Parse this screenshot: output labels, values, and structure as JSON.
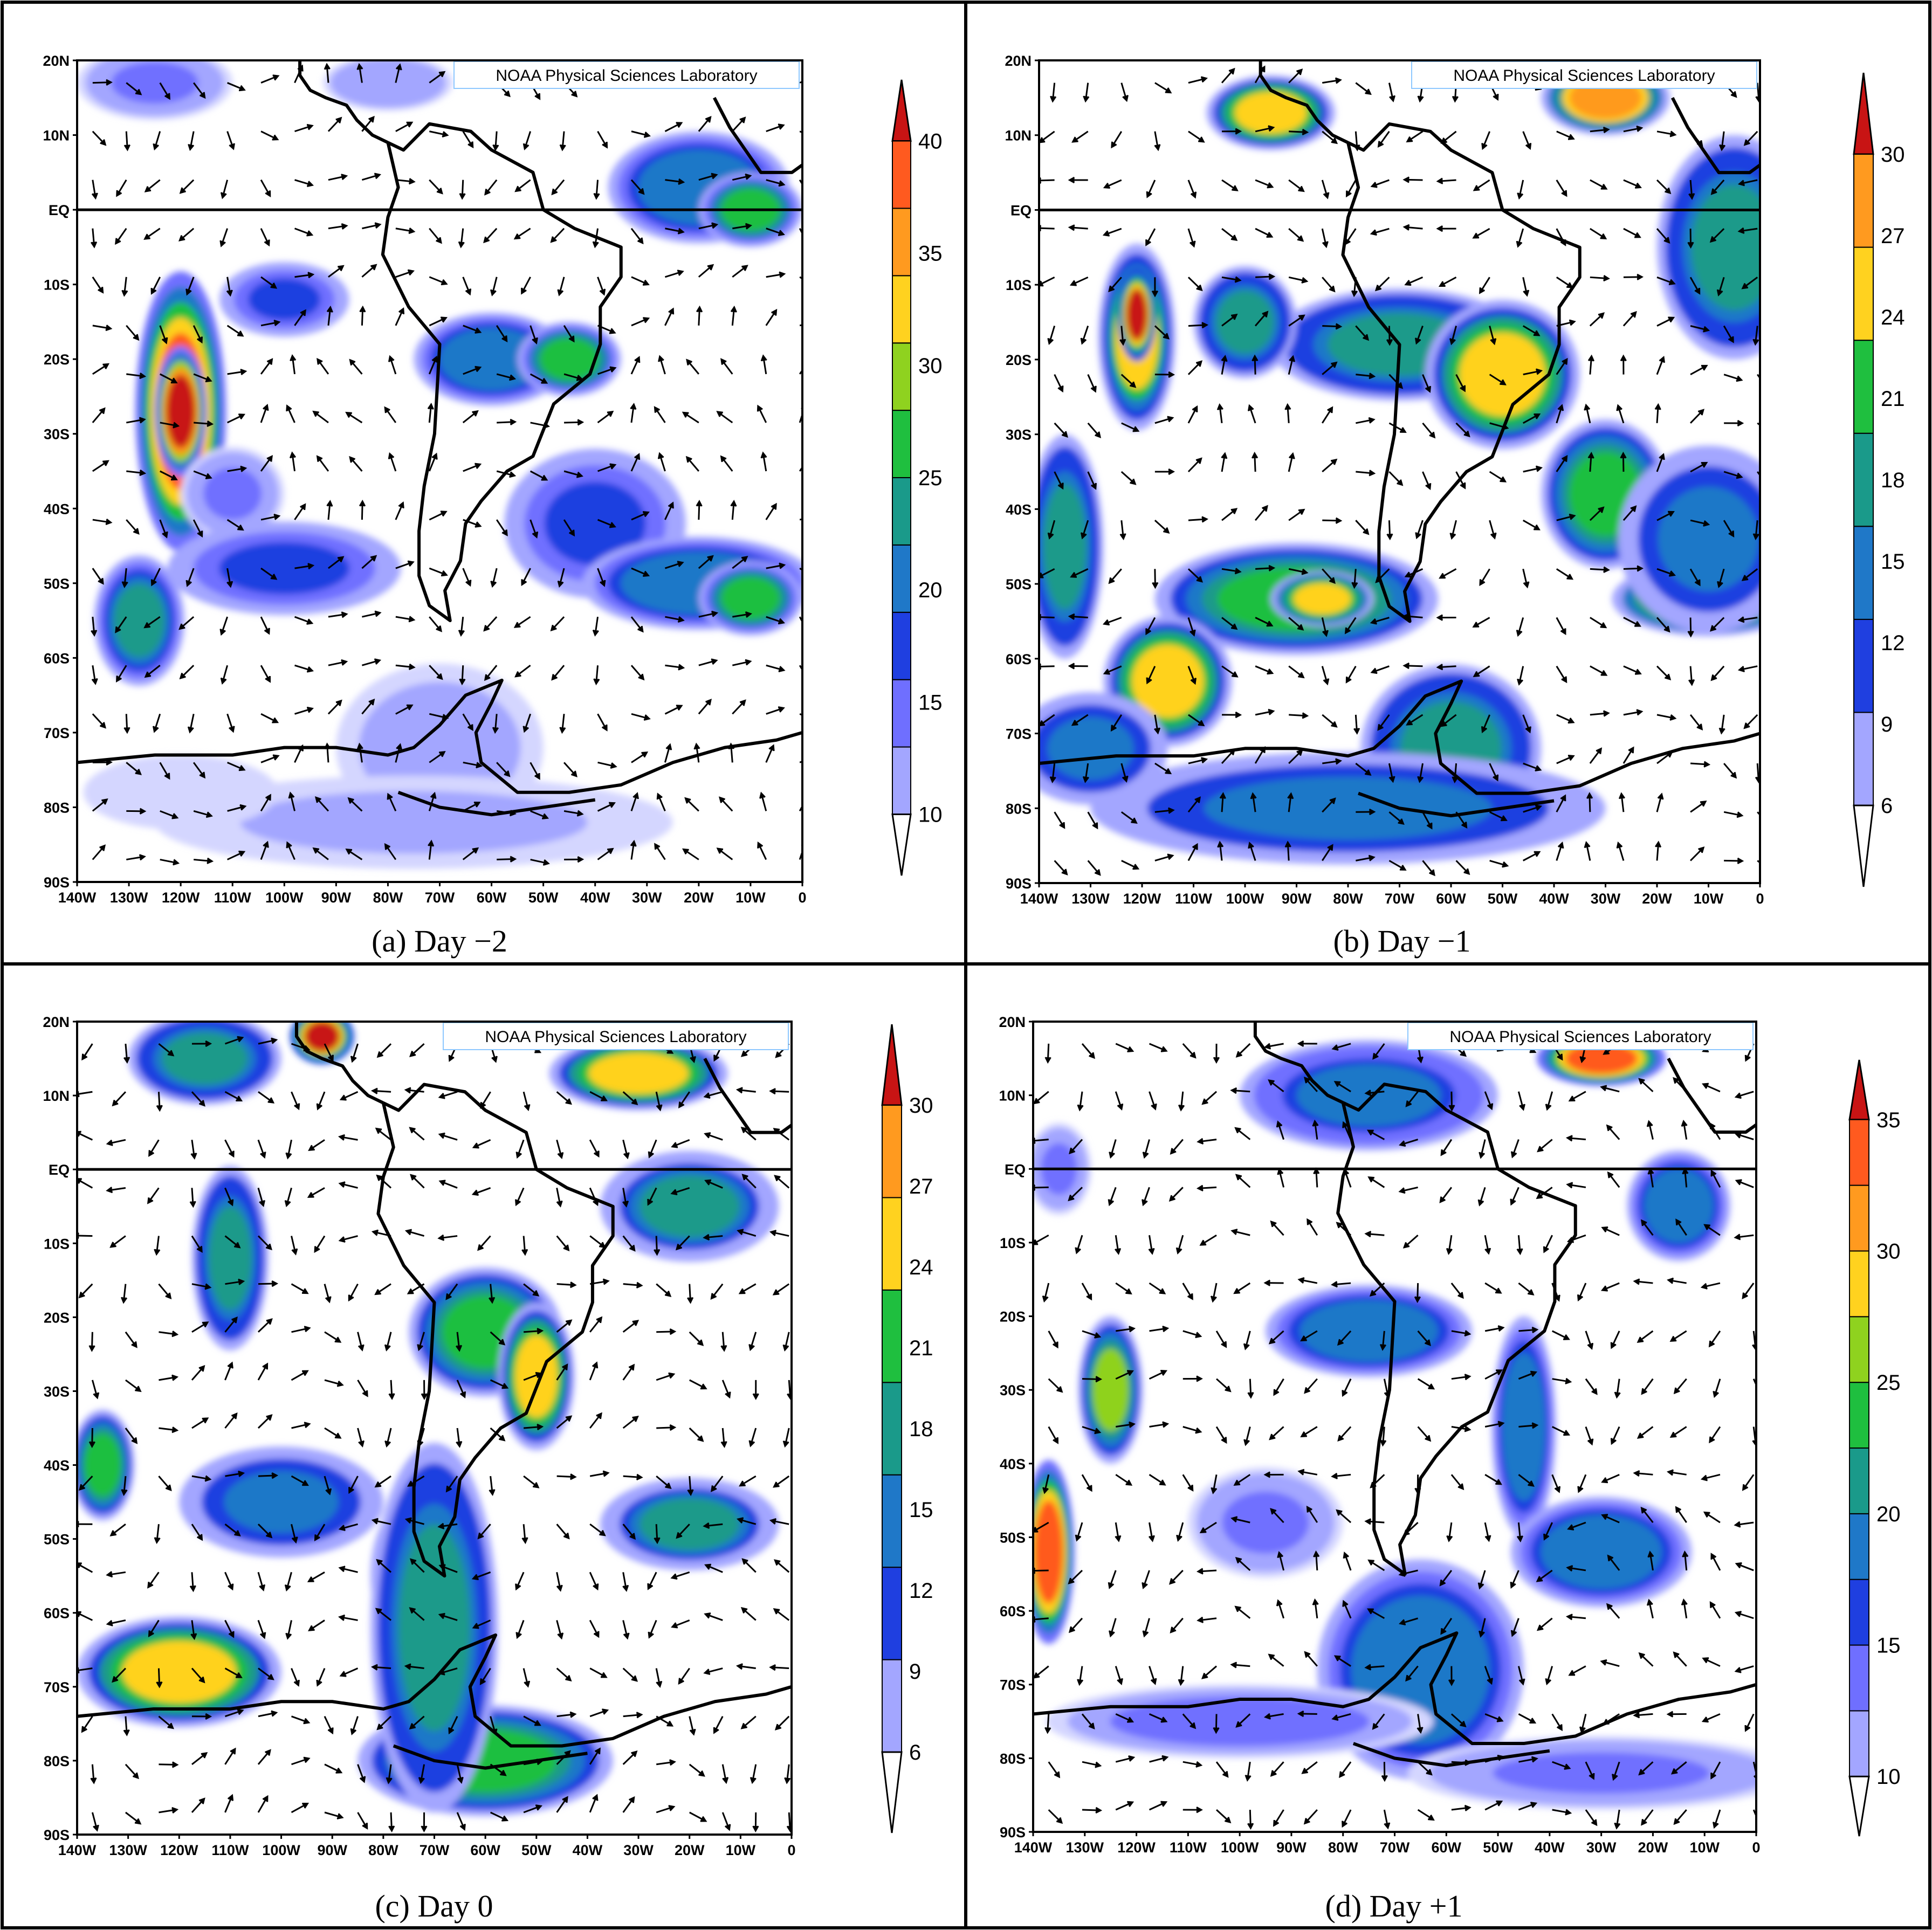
{
  "credit": "NOAA Physical Sciences Laboratory",
  "colors": {
    "cb10": [
      "#d4d6ff",
      "#a3a6ff",
      "#6f6fff",
      "#1f3fe0",
      "#1f78c8",
      "#1a9a8a",
      "#1fbf3f",
      "#8fd21f",
      "#ffd21f",
      "#ff9a1f",
      "#ff5a1f",
      "#c81414"
    ],
    "cb8": [
      "#d4d6ff",
      "#a3a6ff",
      "#1f3fe0",
      "#1f78c8",
      "#1a9a8a",
      "#1fbf3f",
      "#ffd21f",
      "#ff9a1f",
      "#c81414"
    ],
    "continent": "#000000",
    "equator": "#000000"
  },
  "chart_data": [
    {
      "type": "heatmap",
      "caption": "(a) Day −2",
      "xticks": [
        "140W",
        "130W",
        "120W",
        "110W",
        "100W",
        "90W",
        "80W",
        "70W",
        "60W",
        "50W",
        "40W",
        "30W",
        "20W",
        "10W",
        "0"
      ],
      "yticks": [
        "20N",
        "10N",
        "EQ",
        "10S",
        "20S",
        "30S",
        "40S",
        "50S",
        "60S",
        "70S",
        "80S",
        "90S"
      ],
      "colorbar_ticks": [
        "10",
        "15",
        "20",
        "25",
        "30",
        "35",
        "40"
      ],
      "blobs": [
        {
          "lon": -120,
          "lat": -27,
          "rx": 7,
          "ry": 15,
          "v": 36
        },
        {
          "lon": -120,
          "lat": -27,
          "rx": 4,
          "ry": 7,
          "v": 40
        },
        {
          "lon": -125,
          "lat": 17,
          "rx": 12,
          "ry": 4,
          "v": 15
        },
        {
          "lon": -80,
          "lat": 17,
          "rx": 10,
          "ry": 3,
          "v": 14
        },
        {
          "lon": -20,
          "lat": 3,
          "rx": 14,
          "ry": 6,
          "v": 22
        },
        {
          "lon": -10,
          "lat": 0,
          "rx": 8,
          "ry": 4,
          "v": 27
        },
        {
          "lon": -100,
          "lat": -12,
          "rx": 10,
          "ry": 4,
          "v": 17
        },
        {
          "lon": -60,
          "lat": -20,
          "rx": 12,
          "ry": 5,
          "v": 22
        },
        {
          "lon": -45,
          "lat": -20,
          "rx": 8,
          "ry": 4,
          "v": 27
        },
        {
          "lon": -110,
          "lat": -38,
          "rx": 8,
          "ry": 5,
          "v": 15
        },
        {
          "lon": -100,
          "lat": -48,
          "rx": 18,
          "ry": 5,
          "v": 17
        },
        {
          "lon": -40,
          "lat": -42,
          "rx": 14,
          "ry": 8,
          "v": 17
        },
        {
          "lon": -20,
          "lat": -50,
          "rx": 18,
          "ry": 5,
          "v": 22
        },
        {
          "lon": -10,
          "lat": -52,
          "rx": 8,
          "ry": 4,
          "v": 27
        },
        {
          "lon": -128,
          "lat": -55,
          "rx": 7,
          "ry": 7,
          "v": 23
        },
        {
          "lon": -70,
          "lat": -72,
          "rx": 16,
          "ry": 9,
          "v": 13
        },
        {
          "lon": -75,
          "lat": -82,
          "rx": 40,
          "ry": 5,
          "v": 12
        },
        {
          "lon": -120,
          "lat": -78,
          "rx": 15,
          "ry": 4,
          "v": 11
        }
      ]
    },
    {
      "type": "heatmap",
      "caption": "(b) Day −1",
      "xticks": [
        "140W",
        "130W",
        "120W",
        "110W",
        "100W",
        "90W",
        "80W",
        "70W",
        "60W",
        "50W",
        "40W",
        "30W",
        "20W",
        "10W",
        "0"
      ],
      "yticks": [
        "20N",
        "10N",
        "EQ",
        "10S",
        "20S",
        "30S",
        "40S",
        "50S",
        "60S",
        "70S",
        "80S",
        "90S"
      ],
      "colorbar_ticks": [
        "6",
        "9",
        "12",
        "15",
        "18",
        "21",
        "24",
        "27",
        "30"
      ],
      "blobs": [
        {
          "lon": -121,
          "lat": -17,
          "rx": 6,
          "ry": 10,
          "v": 23
        },
        {
          "lon": -121,
          "lat": -14,
          "rx": 3,
          "ry": 5,
          "v": 30
        },
        {
          "lon": -95,
          "lat": 13,
          "rx": 10,
          "ry": 4,
          "v": 24
        },
        {
          "lon": -30,
          "lat": 15,
          "rx": 10,
          "ry": 4,
          "v": 27
        },
        {
          "lon": -5,
          "lat": -5,
          "rx": 12,
          "ry": 12,
          "v": 18
        },
        {
          "lon": -70,
          "lat": -18,
          "rx": 20,
          "ry": 6,
          "v": 18
        },
        {
          "lon": -50,
          "lat": -22,
          "rx": 12,
          "ry": 8,
          "v": 24
        },
        {
          "lon": -30,
          "lat": -38,
          "rx": 10,
          "ry": 8,
          "v": 20
        },
        {
          "lon": -100,
          "lat": -15,
          "rx": 8,
          "ry": 6,
          "v": 18
        },
        {
          "lon": -135,
          "lat": -45,
          "rx": 6,
          "ry": 12,
          "v": 18
        },
        {
          "lon": -90,
          "lat": -52,
          "rx": 22,
          "ry": 6,
          "v": 20
        },
        {
          "lon": -85,
          "lat": -52,
          "rx": 8,
          "ry": 3,
          "v": 25
        },
        {
          "lon": -115,
          "lat": -63,
          "rx": 10,
          "ry": 7,
          "v": 24
        },
        {
          "lon": -10,
          "lat": -52,
          "rx": 15,
          "ry": 4,
          "v": 27
        },
        {
          "lon": -10,
          "lat": -44,
          "rx": 14,
          "ry": 10,
          "v": 15
        },
        {
          "lon": -60,
          "lat": -72,
          "rx": 14,
          "ry": 9,
          "v": 18
        },
        {
          "lon": -80,
          "lat": -80,
          "rx": 40,
          "ry": 6,
          "v": 14
        },
        {
          "lon": -130,
          "lat": -72,
          "rx": 12,
          "ry": 6,
          "v": 15
        }
      ]
    },
    {
      "type": "heatmap",
      "caption": "(c) Day 0",
      "xticks": [
        "140W",
        "130W",
        "120W",
        "110W",
        "100W",
        "90W",
        "80W",
        "70W",
        "60W",
        "50W",
        "40W",
        "30W",
        "20W",
        "10W",
        "0"
      ],
      "yticks": [
        "20N",
        "10N",
        "EQ",
        "10S",
        "20S",
        "30S",
        "40S",
        "50S",
        "60S",
        "70S",
        "80S",
        "90S"
      ],
      "colorbar_ticks": [
        "6",
        "9",
        "12",
        "15",
        "18",
        "21",
        "24",
        "27",
        "30"
      ],
      "blobs": [
        {
          "lon": -115,
          "lat": 15,
          "rx": 12,
          "ry": 5,
          "v": 18
        },
        {
          "lon": -92,
          "lat": 18,
          "rx": 5,
          "ry": 3,
          "v": 30
        },
        {
          "lon": -30,
          "lat": 13,
          "rx": 14,
          "ry": 4,
          "v": 24
        },
        {
          "lon": -60,
          "lat": -22,
          "rx": 12,
          "ry": 7,
          "v": 20
        },
        {
          "lon": -50,
          "lat": -28,
          "rx": 6,
          "ry": 8,
          "v": 24
        },
        {
          "lon": -110,
          "lat": -12,
          "rx": 6,
          "ry": 10,
          "v": 18
        },
        {
          "lon": -120,
          "lat": -68,
          "rx": 16,
          "ry": 6,
          "v": 24
        },
        {
          "lon": -75,
          "lat": -55,
          "rx": 6,
          "ry": 8,
          "v": 24
        },
        {
          "lon": -60,
          "lat": -80,
          "rx": 20,
          "ry": 6,
          "v": 21
        },
        {
          "lon": -70,
          "lat": -62,
          "rx": 10,
          "ry": 20,
          "v": 18
        },
        {
          "lon": -20,
          "lat": -48,
          "rx": 14,
          "ry": 5,
          "v": 17
        },
        {
          "lon": -135,
          "lat": -40,
          "rx": 5,
          "ry": 6,
          "v": 22
        },
        {
          "lon": -20,
          "lat": -5,
          "rx": 14,
          "ry": 6,
          "v": 17
        },
        {
          "lon": -100,
          "lat": -45,
          "rx": 16,
          "ry": 6,
          "v": 15
        }
      ]
    },
    {
      "type": "heatmap",
      "caption": "(d) Day +1",
      "xticks": [
        "140W",
        "130W",
        "120W",
        "110W",
        "100W",
        "90W",
        "80W",
        "70W",
        "60W",
        "50W",
        "40W",
        "30W",
        "20W",
        "10W",
        "0"
      ],
      "yticks": [
        "20N",
        "10N",
        "EQ",
        "10S",
        "20S",
        "30S",
        "40S",
        "50S",
        "60S",
        "70S",
        "80S",
        "90S"
      ],
      "colorbar_ticks": [
        "10",
        "15",
        "20",
        "25",
        "30",
        "35"
      ],
      "blobs": [
        {
          "lon": -137,
          "lat": -52,
          "rx": 4,
          "ry": 10,
          "v": 33
        },
        {
          "lon": -125,
          "lat": -30,
          "rx": 5,
          "ry": 8,
          "v": 25
        },
        {
          "lon": -75,
          "lat": 10,
          "rx": 20,
          "ry": 6,
          "v": 19
        },
        {
          "lon": -30,
          "lat": 15,
          "rx": 10,
          "ry": 3,
          "v": 32
        },
        {
          "lon": -15,
          "lat": -5,
          "rx": 8,
          "ry": 6,
          "v": 20
        },
        {
          "lon": -75,
          "lat": -22,
          "rx": 16,
          "ry": 5,
          "v": 20
        },
        {
          "lon": -45,
          "lat": -35,
          "rx": 5,
          "ry": 12,
          "v": 20
        },
        {
          "lon": -30,
          "lat": -52,
          "rx": 14,
          "ry": 6,
          "v": 20
        },
        {
          "lon": -65,
          "lat": -68,
          "rx": 16,
          "ry": 12,
          "v": 20
        },
        {
          "lon": -100,
          "lat": -75,
          "rx": 30,
          "ry": 4,
          "v": 15
        },
        {
          "lon": -30,
          "lat": -82,
          "rx": 30,
          "ry": 4,
          "v": 14
        },
        {
          "lon": -95,
          "lat": -48,
          "rx": 12,
          "ry": 6,
          "v": 14
        },
        {
          "lon": -135,
          "lat": 0,
          "rx": 5,
          "ry": 5,
          "v": 14
        }
      ]
    }
  ]
}
